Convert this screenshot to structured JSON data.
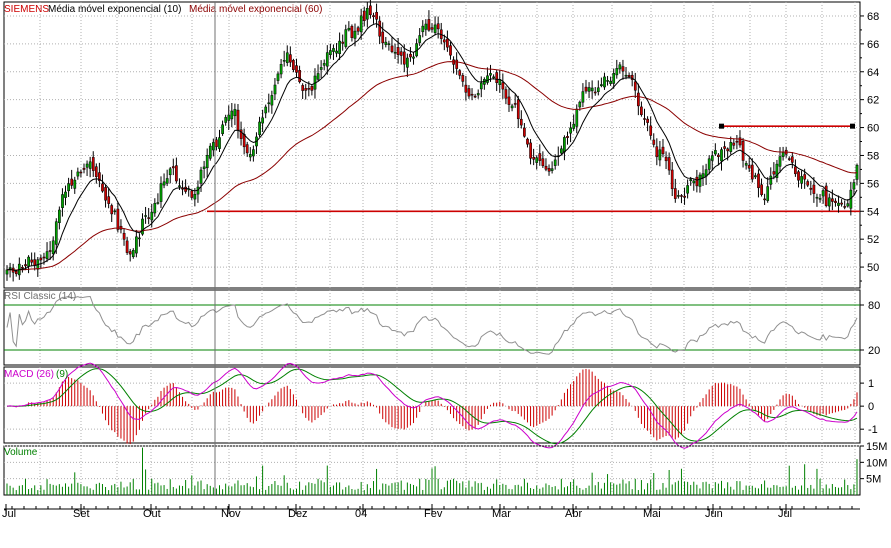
{
  "colors": {
    "up": "#00a000",
    "down": "#cc0000",
    "ema10": "#000000",
    "ema60": "#8b0000",
    "support": "#cc0000",
    "rsi": "#909090",
    "rsi_levels": "#008000",
    "macd": "#cc00cc",
    "signal": "#008000",
    "histogram": "#cc0000",
    "volume": "#008000",
    "grid": "#b0b0b0",
    "frame": "#000000"
  },
  "chart_data": [
    {
      "type": "candlestick",
      "legend": {
        "symbol": "SIEMENS",
        "ema_short": "Média móvel exponencial (10)",
        "ema_long": "Média móvel exponencial (60)"
      },
      "ylim": [
        48.5,
        69
      ],
      "yticks": [
        50,
        52,
        54,
        56,
        58,
        60,
        62,
        64,
        66,
        68
      ],
      "x_months": [
        "Jul",
        "Set",
        "Out",
        "Nov",
        "Dez",
        "04",
        "Fev",
        "Mar",
        "Abr",
        "Mai",
        "Jun",
        "Jul"
      ],
      "close_anchors": [
        [
          0,
          49.8
        ],
        [
          12,
          50.6
        ],
        [
          20,
          55.8
        ],
        [
          27,
          57.6
        ],
        [
          33,
          54.2
        ],
        [
          40,
          51.2
        ],
        [
          46,
          53.8
        ],
        [
          53,
          56.9
        ],
        [
          60,
          55.2
        ],
        [
          67,
          58.8
        ],
        [
          73,
          61.3
        ],
        [
          78,
          58.0
        ],
        [
          84,
          61.2
        ],
        [
          91,
          65.0
        ],
        [
          97,
          62.3
        ],
        [
          104,
          65.0
        ],
        [
          111,
          66.8
        ],
        [
          118,
          68.2
        ],
        [
          124,
          65.8
        ],
        [
          130,
          64.8
        ],
        [
          136,
          67.2
        ],
        [
          141,
          66.8
        ],
        [
          146,
          64.0
        ],
        [
          151,
          62.4
        ],
        [
          158,
          63.6
        ],
        [
          164,
          61.6
        ],
        [
          170,
          58.1
        ],
        [
          176,
          57.0
        ],
        [
          182,
          59.6
        ],
        [
          188,
          62.4
        ],
        [
          194,
          63.3
        ],
        [
          199,
          64.6
        ],
        [
          202,
          63.5
        ],
        [
          206,
          61.2
        ],
        [
          212,
          58.0
        ],
        [
          218,
          55.1
        ],
        [
          224,
          56.2
        ],
        [
          230,
          58.0
        ],
        [
          236,
          58.9
        ],
        [
          242,
          56.7
        ],
        [
          246,
          55.3
        ],
        [
          252,
          58.6
        ],
        [
          257,
          56.6
        ],
        [
          262,
          55.5
        ],
        [
          268,
          54.6
        ],
        [
          271,
          54.1
        ],
        [
          274,
          55.3
        ],
        [
          276,
          57.3
        ]
      ],
      "annotations": {
        "support_level": 54.0,
        "resistance_level": 60.1
      },
      "grid": true
    },
    {
      "type": "line",
      "title": "RSI Classic (14)",
      "levels": [
        20,
        80
      ],
      "ylim": [
        0,
        100
      ],
      "yticks": [
        20,
        80
      ]
    },
    {
      "type": "line+bar",
      "legend": {
        "macd": "MACD (26)",
        "signal": "(9)"
      },
      "ylim": [
        -1.6,
        1.7
      ],
      "yticks": [
        -1,
        0,
        1
      ]
    },
    {
      "type": "bar",
      "title": "Volume",
      "ylim": [
        0,
        15
      ],
      "yticks": [
        5,
        10,
        15
      ],
      "ytick_labels": [
        "5M",
        "10M",
        "15M"
      ]
    }
  ]
}
